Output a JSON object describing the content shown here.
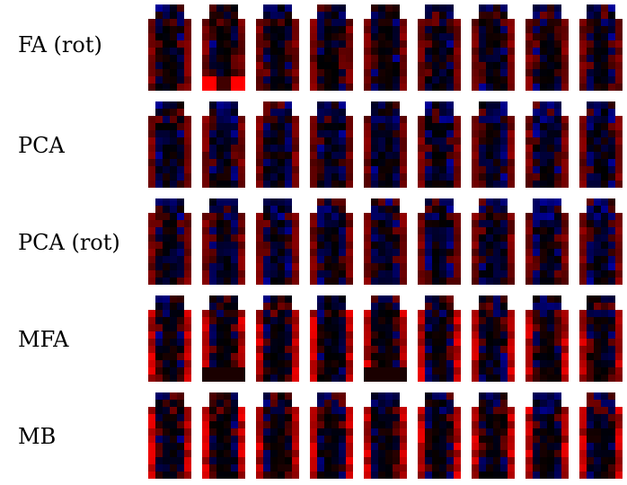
{
  "rows": [
    {
      "label": "FA (rot)",
      "count": 9,
      "seed": 11
    },
    {
      "label": "PCA",
      "count": 9,
      "seed": 23
    },
    {
      "label": "PCA (rot)",
      "count": 9,
      "seed": 37
    },
    {
      "label": "MFA",
      "count": 9,
      "seed": 41
    },
    {
      "label": "MB",
      "count": 9,
      "seed": 59
    }
  ]
}
